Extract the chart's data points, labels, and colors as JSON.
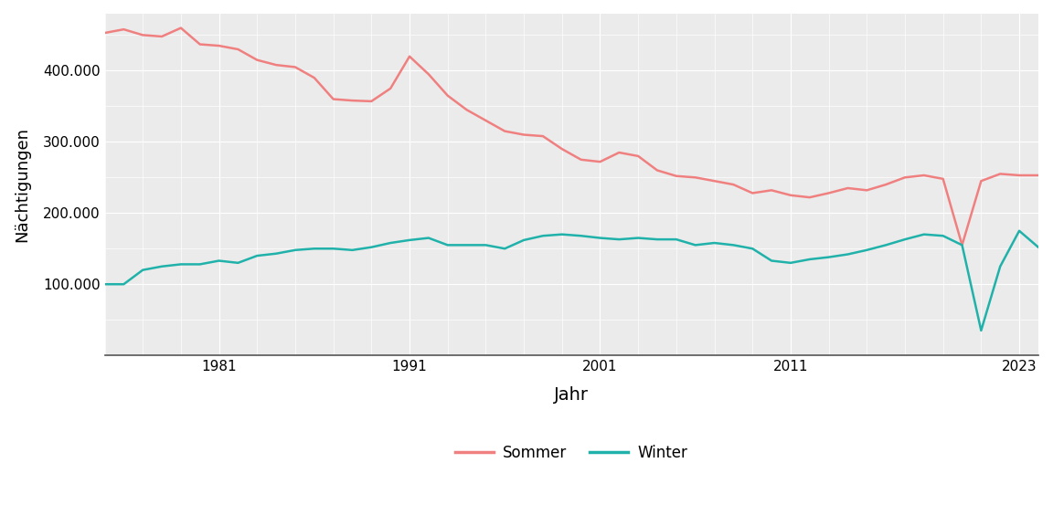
{
  "title": "",
  "xlabel": "Jahr",
  "ylabel": "Nächtigungen",
  "background_color": "#ffffff",
  "plot_background_color": "#ebebeb",
  "grid_color": "#ffffff",
  "legend_labels": [
    "Sommer",
    "Winter"
  ],
  "sommer_color": "#F08080",
  "winter_color": "#20B2AA",
  "years": [
    1975,
    1976,
    1977,
    1978,
    1979,
    1980,
    1981,
    1982,
    1983,
    1984,
    1985,
    1986,
    1987,
    1988,
    1989,
    1990,
    1991,
    1992,
    1993,
    1994,
    1995,
    1996,
    1997,
    1998,
    1999,
    2000,
    2001,
    2002,
    2003,
    2004,
    2005,
    2006,
    2007,
    2008,
    2009,
    2010,
    2011,
    2012,
    2013,
    2014,
    2015,
    2016,
    2017,
    2018,
    2019,
    2020,
    2021,
    2022,
    2023,
    2024
  ],
  "sommer": [
    453000,
    458000,
    450000,
    448000,
    460000,
    437000,
    435000,
    430000,
    415000,
    408000,
    405000,
    390000,
    360000,
    358000,
    357000,
    375000,
    420000,
    395000,
    365000,
    345000,
    330000,
    315000,
    310000,
    308000,
    290000,
    275000,
    272000,
    285000,
    280000,
    260000,
    252000,
    250000,
    245000,
    240000,
    228000,
    232000,
    225000,
    222000,
    228000,
    235000,
    232000,
    240000,
    250000,
    253000,
    248000,
    155000,
    245000,
    255000,
    253000,
    253000
  ],
  "winter": [
    100000,
    100000,
    120000,
    125000,
    128000,
    128000,
    133000,
    130000,
    140000,
    143000,
    148000,
    150000,
    150000,
    148000,
    152000,
    158000,
    162000,
    165000,
    155000,
    155000,
    155000,
    150000,
    162000,
    168000,
    170000,
    168000,
    165000,
    163000,
    165000,
    163000,
    163000,
    155000,
    158000,
    155000,
    150000,
    133000,
    130000,
    135000,
    138000,
    142000,
    148000,
    155000,
    163000,
    170000,
    168000,
    155000,
    35000,
    125000,
    175000,
    152000
  ],
  "ylim": [
    0,
    480000
  ],
  "xlim": [
    1975,
    2024
  ],
  "ytick_major_values": [
    100000,
    200000,
    300000,
    400000
  ],
  "ytick_minor_values": [
    50000,
    150000,
    250000,
    350000,
    450000
  ],
  "xtick_values": [
    1981,
    1991,
    2001,
    2011,
    2023
  ],
  "line_width": 1.8
}
